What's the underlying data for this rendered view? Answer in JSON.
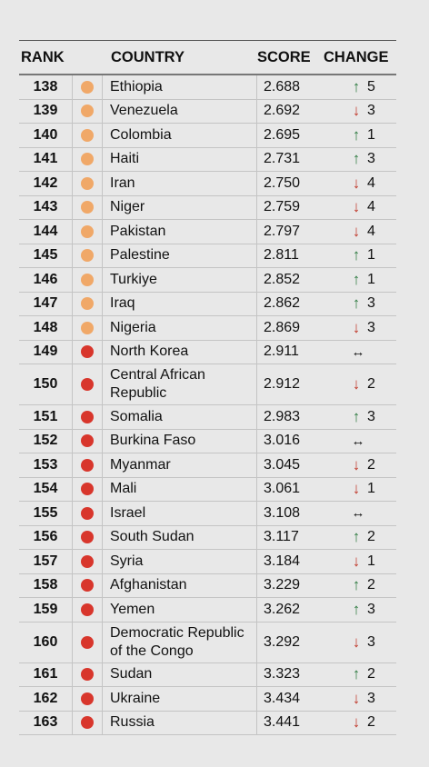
{
  "colors": {
    "orange": "#f0a868",
    "red": "#d8362c",
    "up": "#2c7a3f",
    "down": "#c0392b"
  },
  "headers": {
    "rank": "RANK",
    "country": "COUNTRY",
    "score": "SCORE",
    "change": "CHANGE"
  },
  "rows": [
    {
      "rank": "138",
      "dot": "orange",
      "country": "Ethiopia",
      "score": "2.688",
      "dir": "up",
      "change": "5"
    },
    {
      "rank": "139",
      "dot": "orange",
      "country": "Venezuela",
      "score": "2.692",
      "dir": "down",
      "change": "3"
    },
    {
      "rank": "140",
      "dot": "orange",
      "country": "Colombia",
      "score": "2.695",
      "dir": "up",
      "change": "1"
    },
    {
      "rank": "141",
      "dot": "orange",
      "country": "Haiti",
      "score": "2.731",
      "dir": "up",
      "change": "3"
    },
    {
      "rank": "142",
      "dot": "orange",
      "country": "Iran",
      "score": "2.750",
      "dir": "down",
      "change": "4"
    },
    {
      "rank": "143",
      "dot": "orange",
      "country": "Niger",
      "score": "2.759",
      "dir": "down",
      "change": "4"
    },
    {
      "rank": "144",
      "dot": "orange",
      "country": "Pakistan",
      "score": "2.797",
      "dir": "down",
      "change": "4"
    },
    {
      "rank": "145",
      "dot": "orange",
      "country": "Palestine",
      "score": "2.811",
      "dir": "up",
      "change": "1"
    },
    {
      "rank": "146",
      "dot": "orange",
      "country": "Turkiye",
      "score": "2.852",
      "dir": "up",
      "change": "1"
    },
    {
      "rank": "147",
      "dot": "orange",
      "country": "Iraq",
      "score": "2.862",
      "dir": "up",
      "change": "3"
    },
    {
      "rank": "148",
      "dot": "orange",
      "country": "Nigeria",
      "score": "2.869",
      "dir": "down",
      "change": "3"
    },
    {
      "rank": "149",
      "dot": "red",
      "country": "North Korea",
      "score": "2.911",
      "dir": "same",
      "change": ""
    },
    {
      "rank": "150",
      "dot": "red",
      "country": "Central African Republic",
      "score": "2.912",
      "dir": "down",
      "change": "2",
      "tall": true
    },
    {
      "rank": "151",
      "dot": "red",
      "country": "Somalia",
      "score": "2.983",
      "dir": "up",
      "change": "3"
    },
    {
      "rank": "152",
      "dot": "red",
      "country": "Burkina Faso",
      "score": "3.016",
      "dir": "same",
      "change": ""
    },
    {
      "rank": "153",
      "dot": "red",
      "country": "Myanmar",
      "score": "3.045",
      "dir": "down",
      "change": "2"
    },
    {
      "rank": "154",
      "dot": "red",
      "country": "Mali",
      "score": "3.061",
      "dir": "down",
      "change": "1"
    },
    {
      "rank": "155",
      "dot": "red",
      "country": "Israel",
      "score": "3.108",
      "dir": "same",
      "change": ""
    },
    {
      "rank": "156",
      "dot": "red",
      "country": "South Sudan",
      "score": "3.117",
      "dir": "up",
      "change": "2"
    },
    {
      "rank": "157",
      "dot": "red",
      "country": "Syria",
      "score": "3.184",
      "dir": "down",
      "change": "1"
    },
    {
      "rank": "158",
      "dot": "red",
      "country": "Afghanistan",
      "score": "3.229",
      "dir": "up",
      "change": "2"
    },
    {
      "rank": "159",
      "dot": "red",
      "country": "Yemen",
      "score": "3.262",
      "dir": "up",
      "change": "3"
    },
    {
      "rank": "160",
      "dot": "red",
      "country": "Democratic Republic of the Congo",
      "score": "3.292",
      "dir": "down",
      "change": "3",
      "tall": true
    },
    {
      "rank": "161",
      "dot": "red",
      "country": "Sudan",
      "score": "3.323",
      "dir": "up",
      "change": "2"
    },
    {
      "rank": "162",
      "dot": "red",
      "country": "Ukraine",
      "score": "3.434",
      "dir": "down",
      "change": "3"
    },
    {
      "rank": "163",
      "dot": "red",
      "country": "Russia",
      "score": "3.441",
      "dir": "down",
      "change": "2"
    }
  ]
}
